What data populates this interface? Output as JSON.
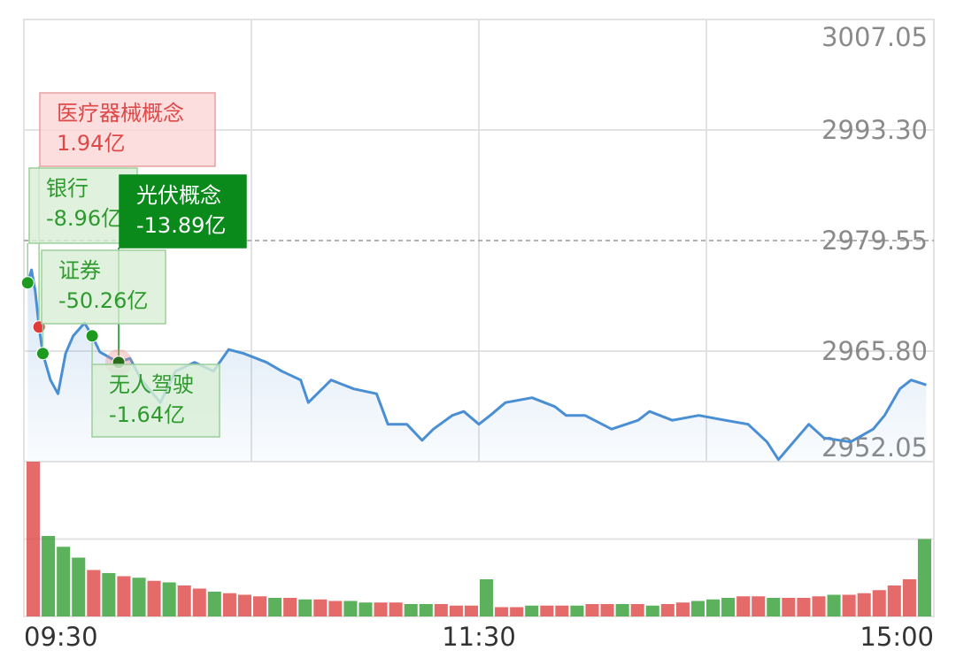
{
  "chart_data": {
    "type": "line",
    "x": [
      1,
      2,
      3,
      4,
      5,
      7,
      9,
      11,
      13,
      16,
      18,
      20,
      23,
      25,
      28,
      31,
      36,
      40,
      45,
      50,
      54,
      58,
      64,
      68,
      73,
      75,
      81,
      87,
      93,
      96,
      101,
      105,
      108,
      113,
      116,
      120,
      123,
      127,
      134,
      140,
      143,
      148,
      155,
      162,
      165,
      171,
      178,
      185,
      191,
      196,
      199,
      203,
      207,
      211,
      218,
      224,
      227,
      231,
      234,
      238
    ],
    "values": [
      2974.3,
      2975.9,
      2973.2,
      2968.8,
      2965.5,
      2962.2,
      2960.5,
      2965.5,
      2967.7,
      2969.3,
      2967.7,
      2965.7,
      2964.9,
      2964.4,
      2964.9,
      2962.2,
      2959.4,
      2963.3,
      2964.4,
      2963.3,
      2966.0,
      2965.5,
      2964.4,
      2963.3,
      2962.2,
      2959.4,
      2962.2,
      2961.1,
      2960.5,
      2956.7,
      2956.7,
      2954.7,
      2956.1,
      2957.8,
      2958.3,
      2956.7,
      2957.8,
      2959.4,
      2960.0,
      2958.9,
      2957.8,
      2957.8,
      2956.1,
      2957.2,
      2958.3,
      2957.2,
      2957.8,
      2957.2,
      2956.7,
      2954.5,
      2952.3,
      2954.5,
      2956.7,
      2955.0,
      2954.5,
      2956.1,
      2957.8,
      2961.1,
      2962.2,
      2961.6
    ],
    "color": "#4a8fd4",
    "xlim": [
      0,
      240
    ],
    "xticks": [
      {
        "value": 0,
        "label": "09:30"
      },
      {
        "value": 120,
        "label": "11:30"
      },
      {
        "value": 240,
        "label": "15:00"
      }
    ],
    "xgrid": [
      60,
      120,
      180
    ],
    "ylim": [
      2952.05,
      3007.05
    ],
    "yticks": [
      3007.05,
      {
        "value": 2993.3,
        "label": "2993.30"
      },
      2979.55,
      {
        "value": 2965.8,
        "label": "2965.80"
      },
      2952.05
    ],
    "dashed_tick_index": 2,
    "grid": true,
    "volume": {
      "ylim": [
        0,
        100
      ],
      "yticks": [
        50
      ],
      "values": [
        100,
        52,
        45,
        38,
        30,
        28,
        26,
        25,
        23,
        22,
        20,
        18,
        16,
        15,
        14,
        13,
        12,
        12,
        11,
        11,
        10,
        10,
        9,
        9,
        9,
        8,
        8,
        8,
        7,
        7,
        24,
        6,
        6,
        7,
        7,
        7,
        7,
        8,
        8,
        8,
        8,
        7,
        8,
        9,
        10,
        11,
        12,
        13,
        13,
        12,
        12,
        12,
        13,
        14,
        14,
        15,
        17,
        20,
        24,
        50
      ],
      "colors": [
        "#e05050",
        "#3fa33f",
        "#3fa33f",
        "#3fa33f",
        "#e05050",
        "#3fa33f",
        "#e05050",
        "#3fa33f",
        "#e05050",
        "#3fa33f",
        "#e05050",
        "#e05050",
        "#3fa33f",
        "#e05050",
        "#e05050",
        "#e05050",
        "#3fa33f",
        "#e05050",
        "#3fa33f",
        "#e05050",
        "#e05050",
        "#3fa33f",
        "#3fa33f",
        "#e05050",
        "#e05050",
        "#3fa33f",
        "#3fa33f",
        "#e05050",
        "#e05050",
        "#e05050",
        "#3fa33f",
        "#e05050",
        "#e05050",
        "#3fa33f",
        "#e05050",
        "#e05050",
        "#3fa33f",
        "#e05050",
        "#e05050",
        "#3fa33f",
        "#e05050",
        "#3fa33f",
        "#e05050",
        "#e05050",
        "#3fa33f",
        "#3fa33f",
        "#3fa33f",
        "#e05050",
        "#e05050",
        "#3fa33f",
        "#e05050",
        "#e05050",
        "#e05050",
        "#3fa33f",
        "#e05050",
        "#e05050",
        "#e05050",
        "#e05050",
        "#e05050",
        "#3fa33f"
      ]
    },
    "annotations": [
      {
        "name": "医疗器械概念",
        "amount": "1.94亿",
        "x": 4,
        "color": "#e04848",
        "style": "light"
      },
      {
        "name": "银行",
        "amount": "-8.96亿",
        "x": 1,
        "color": "#2e9a2e",
        "style": "light"
      },
      {
        "name": "光伏概念",
        "amount": "-13.89亿",
        "x": 25,
        "color": "#0b8a1c",
        "style": "solid"
      },
      {
        "name": "证券",
        "amount": "-50.26亿",
        "x": 5,
        "color": "#2e9a2e",
        "style": "light"
      },
      {
        "name": "无人驾驶",
        "amount": "-1.64亿",
        "x": 18,
        "color": "#2e9a2e",
        "style": "light"
      }
    ]
  }
}
